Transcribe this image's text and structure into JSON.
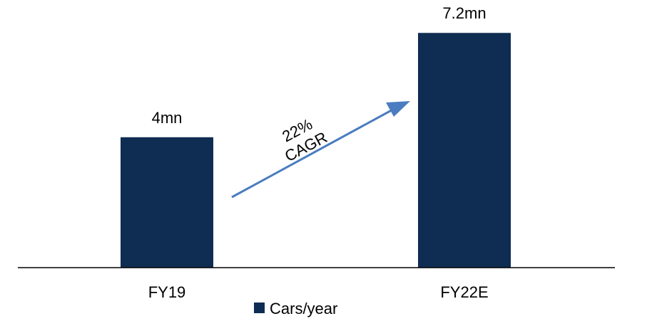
{
  "chart_data": {
    "type": "bar",
    "categories": [
      "FY19",
      "FY22E"
    ],
    "series": [
      {
        "name": "Cars/year",
        "values": [
          4.0,
          7.2
        ],
        "data_labels": [
          "4mn",
          "7.2mn"
        ],
        "color": "#0f2d52"
      }
    ],
    "ylim": [
      0,
      8
    ],
    "grid": false,
    "legend": {
      "position": "bottom",
      "entries": [
        "Cars/year"
      ]
    },
    "annotation": {
      "line1": "22%",
      "line2": "CAGR",
      "arrow_color": "#4a7cc0",
      "from_category": "FY19",
      "to_category": "FY22E"
    }
  }
}
